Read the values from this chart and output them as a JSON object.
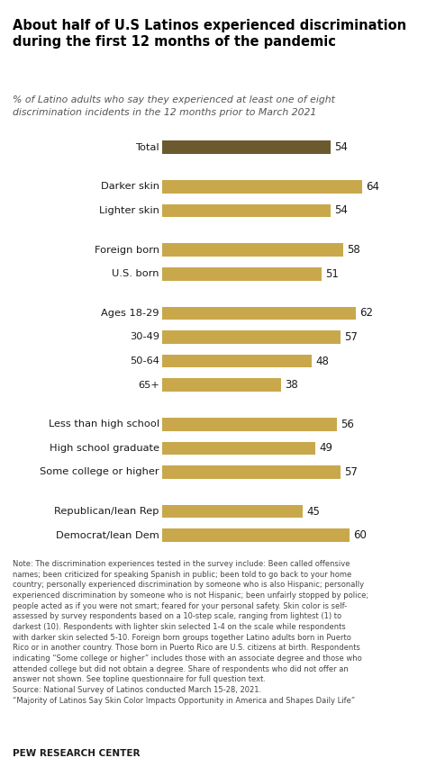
{
  "title": "About half of U.S Latinos experienced discrimination\nduring the first 12 months of the pandemic",
  "subtitle": "% of Latino adults who say they experienced at least one of eight\ndiscrimination incidents in the 12 months prior to March 2021",
  "categories": [
    "Total",
    "Darker skin",
    "Lighter skin",
    "Foreign born",
    "U.S. born",
    "Ages 18-29",
    "30-49",
    "50-64",
    "65+",
    "Less than high school",
    "High school graduate",
    "Some college or higher",
    "Republican/lean Rep",
    "Democrat/lean Dem"
  ],
  "values": [
    54,
    64,
    54,
    58,
    51,
    62,
    57,
    48,
    38,
    56,
    49,
    57,
    45,
    60
  ],
  "bar_color_total": "#6b5a2d",
  "bar_color_others": "#c9a84c",
  "note": "Note: The discrimination experiences tested in the survey include: Been called offensive\nnames; been criticized for speaking Spanish in public; been told to go back to your home\ncountry; personally experienced discrimination by someone who is also Hispanic; personally\nexperienced discrimination by someone who is not Hispanic; been unfairly stopped by police;\npeople acted as if you were not smart; feared for your personal safety. Skin color is self-\nassessed by survey respondents based on a 10-step scale, ranging from lightest (1) to\ndarkest (10). Respondents with lighter skin selected 1-4 on the scale while respondents\nwith darker skin selected 5-10. Foreign born groups together Latino adults born in Puerto\nRico or in another country. Those born in Puerto Rico are U.S. citizens at birth. Respondents\nindicating “Some college or higher” includes those with an associate degree and those who\nattended college but did not obtain a degree. Share of respondents who did not offer an\nanswer not shown. See topline questionnaire for full question text.\nSource: National Survey of Latinos conducted March 15-28, 2021.\n“Majority of Latinos Say Skin Color Impacts Opportunity in America and Shapes Daily Life”",
  "source_label": "PEW RESEARCH CENTER",
  "xlim": [
    0,
    78
  ],
  "bar_height": 0.55,
  "fig_bg": "#ffffff",
  "text_color": "#1a1a1a",
  "note_color": "#444444",
  "title_color": "#000000",
  "subtitle_color": "#555555"
}
